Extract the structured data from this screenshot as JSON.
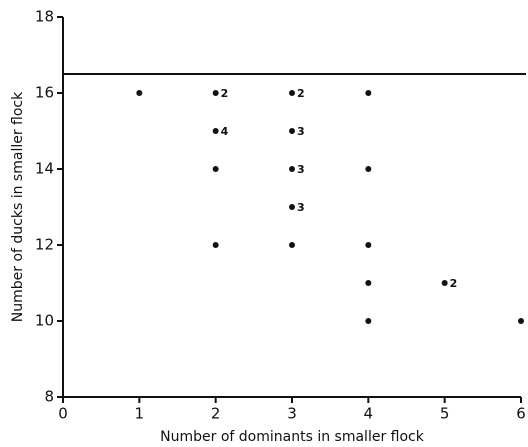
{
  "chart_data": {
    "type": "scatter",
    "xlabel": "Number of dominants in smaller flock",
    "ylabel": "Number of ducks in smaller flock",
    "x": [
      1,
      2,
      2,
      2,
      2,
      3,
      3,
      3,
      3,
      3,
      4,
      4,
      4,
      4,
      4,
      5,
      6
    ],
    "y": [
      16,
      16,
      15,
      14,
      12,
      16,
      15,
      14,
      13,
      12,
      16,
      14,
      12,
      11,
      10,
      11,
      10
    ],
    "point_labels": [
      null,
      2,
      4,
      null,
      null,
      2,
      3,
      3,
      3,
      null,
      null,
      null,
      null,
      null,
      null,
      2,
      null
    ],
    "color": "#111111",
    "hline": 16.5,
    "xlim": [
      0,
      6
    ],
    "xticks": [
      0,
      1,
      2,
      3,
      4,
      5,
      6
    ],
    "ylim": [
      8,
      18
    ],
    "yticks": [
      8,
      10,
      12,
      14,
      16,
      18
    ]
  }
}
